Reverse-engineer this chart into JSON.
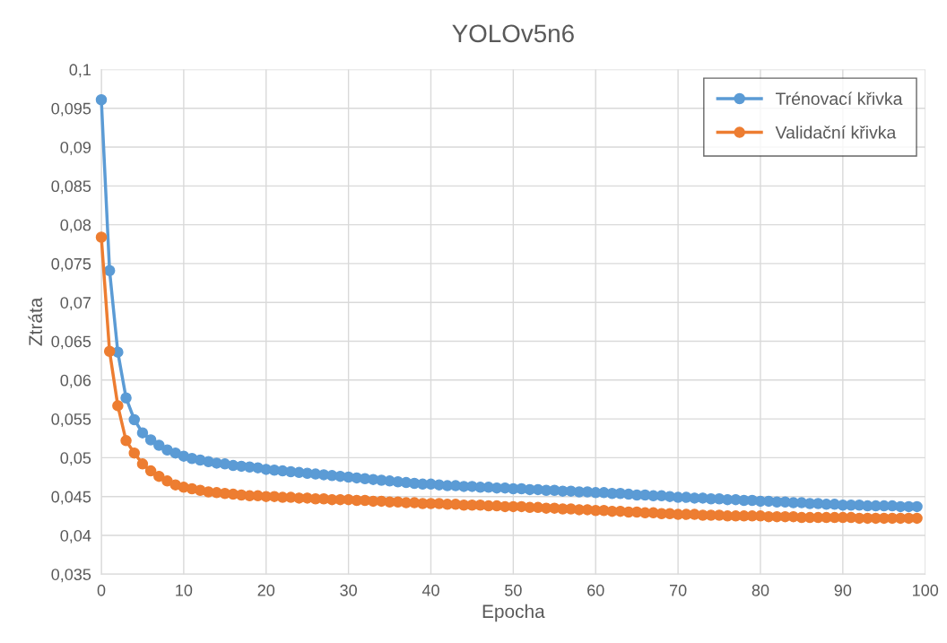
{
  "chart_data": {
    "type": "line",
    "title": "YOLOv5n6",
    "xlabel": "Epocha",
    "ylabel": "Ztráta",
    "xlim": [
      0,
      100
    ],
    "xticks": [
      0,
      10,
      20,
      30,
      40,
      50,
      60,
      70,
      80,
      90,
      100
    ],
    "ylim": [
      0.035,
      0.1
    ],
    "yticks": [
      {
        "value": 0.035,
        "label": "0,035"
      },
      {
        "value": 0.04,
        "label": "0,04"
      },
      {
        "value": 0.045,
        "label": "0,045"
      },
      {
        "value": 0.05,
        "label": "0,05"
      },
      {
        "value": 0.055,
        "label": "0,055"
      },
      {
        "value": 0.06,
        "label": "0,06"
      },
      {
        "value": 0.065,
        "label": "0,065"
      },
      {
        "value": 0.07,
        "label": "0,07"
      },
      {
        "value": 0.075,
        "label": "0,075"
      },
      {
        "value": 0.08,
        "label": "0,08"
      },
      {
        "value": 0.085,
        "label": "0,085"
      },
      {
        "value": 0.09,
        "label": "0,09"
      },
      {
        "value": 0.095,
        "label": "0,095"
      },
      {
        "value": 0.1,
        "label": "0,1"
      }
    ],
    "grid": true,
    "legend": "top right",
    "marker": "circle",
    "line_style": "solid",
    "x": [
      0,
      1,
      2,
      3,
      4,
      5,
      6,
      7,
      8,
      9,
      10,
      11,
      12,
      13,
      14,
      15,
      16,
      17,
      18,
      19,
      20,
      21,
      22,
      23,
      24,
      25,
      26,
      27,
      28,
      29,
      30,
      31,
      32,
      33,
      34,
      35,
      36,
      37,
      38,
      39,
      40,
      41,
      42,
      43,
      44,
      45,
      46,
      47,
      48,
      49,
      50,
      51,
      52,
      53,
      54,
      55,
      56,
      57,
      58,
      59,
      60,
      61,
      62,
      63,
      64,
      65,
      66,
      67,
      68,
      69,
      70,
      71,
      72,
      73,
      74,
      75,
      76,
      77,
      78,
      79,
      80,
      81,
      82,
      83,
      84,
      85,
      86,
      87,
      88,
      89,
      90,
      91,
      92,
      93,
      94,
      95,
      96,
      97,
      98,
      99
    ],
    "series": [
      {
        "name": "Trénovací křivka",
        "color": "#5b9bd5",
        "values": [
          0.0961,
          0.0741,
          0.0636,
          0.0577,
          0.0549,
          0.0532,
          0.0523,
          0.0516,
          0.051,
          0.0506,
          0.0502,
          0.0499,
          0.0497,
          0.0495,
          0.0493,
          0.0492,
          0.049,
          0.0489,
          0.0488,
          0.0487,
          0.0485,
          0.0484,
          0.0483,
          0.0482,
          0.0481,
          0.048,
          0.0479,
          0.0478,
          0.0477,
          0.0476,
          0.0475,
          0.0474,
          0.0473,
          0.0472,
          0.0471,
          0.047,
          0.0469,
          0.0468,
          0.0467,
          0.0466,
          0.0466,
          0.0465,
          0.0464,
          0.0464,
          0.0463,
          0.0463,
          0.0462,
          0.0462,
          0.0461,
          0.0461,
          0.046,
          0.046,
          0.0459,
          0.0459,
          0.0458,
          0.0458,
          0.0457,
          0.0457,
          0.0456,
          0.0456,
          0.0455,
          0.0455,
          0.0454,
          0.0454,
          0.0453,
          0.0452,
          0.0452,
          0.0451,
          0.0451,
          0.045,
          0.0449,
          0.0449,
          0.0448,
          0.0448,
          0.0447,
          0.0447,
          0.0446,
          0.0446,
          0.0445,
          0.0445,
          0.0444,
          0.0444,
          0.0443,
          0.0443,
          0.0442,
          0.0442,
          0.0441,
          0.0441,
          0.044,
          0.044,
          0.0439,
          0.0439,
          0.0439,
          0.0438,
          0.0438,
          0.0438,
          0.0438,
          0.0437,
          0.0437,
          0.0437
        ]
      },
      {
        "name": "Validační křivka",
        "color": "#ed7d31",
        "values": [
          0.0784,
          0.0637,
          0.0567,
          0.0522,
          0.0506,
          0.0492,
          0.0483,
          0.0476,
          0.047,
          0.0465,
          0.0462,
          0.046,
          0.0458,
          0.0456,
          0.0455,
          0.0454,
          0.0453,
          0.0452,
          0.0451,
          0.0451,
          0.045,
          0.045,
          0.0449,
          0.0449,
          0.0448,
          0.0448,
          0.0447,
          0.0447,
          0.0446,
          0.0446,
          0.0446,
          0.0445,
          0.0445,
          0.0444,
          0.0444,
          0.0443,
          0.0443,
          0.0442,
          0.0442,
          0.0441,
          0.0441,
          0.0441,
          0.044,
          0.044,
          0.0439,
          0.0439,
          0.0439,
          0.0438,
          0.0438,
          0.0437,
          0.0437,
          0.0437,
          0.0436,
          0.0436,
          0.0435,
          0.0435,
          0.0434,
          0.0434,
          0.0433,
          0.0433,
          0.0432,
          0.0432,
          0.0431,
          0.0431,
          0.043,
          0.043,
          0.0429,
          0.0429,
          0.0428,
          0.0428,
          0.0427,
          0.0427,
          0.0427,
          0.0426,
          0.0426,
          0.0426,
          0.0425,
          0.0425,
          0.0425,
          0.0425,
          0.0425,
          0.0424,
          0.0424,
          0.0424,
          0.0424,
          0.0423,
          0.0423,
          0.0423,
          0.0423,
          0.0423,
          0.0423,
          0.0423,
          0.0422,
          0.0422,
          0.0422,
          0.0422,
          0.0422,
          0.0422,
          0.0422,
          0.0422
        ]
      }
    ]
  }
}
